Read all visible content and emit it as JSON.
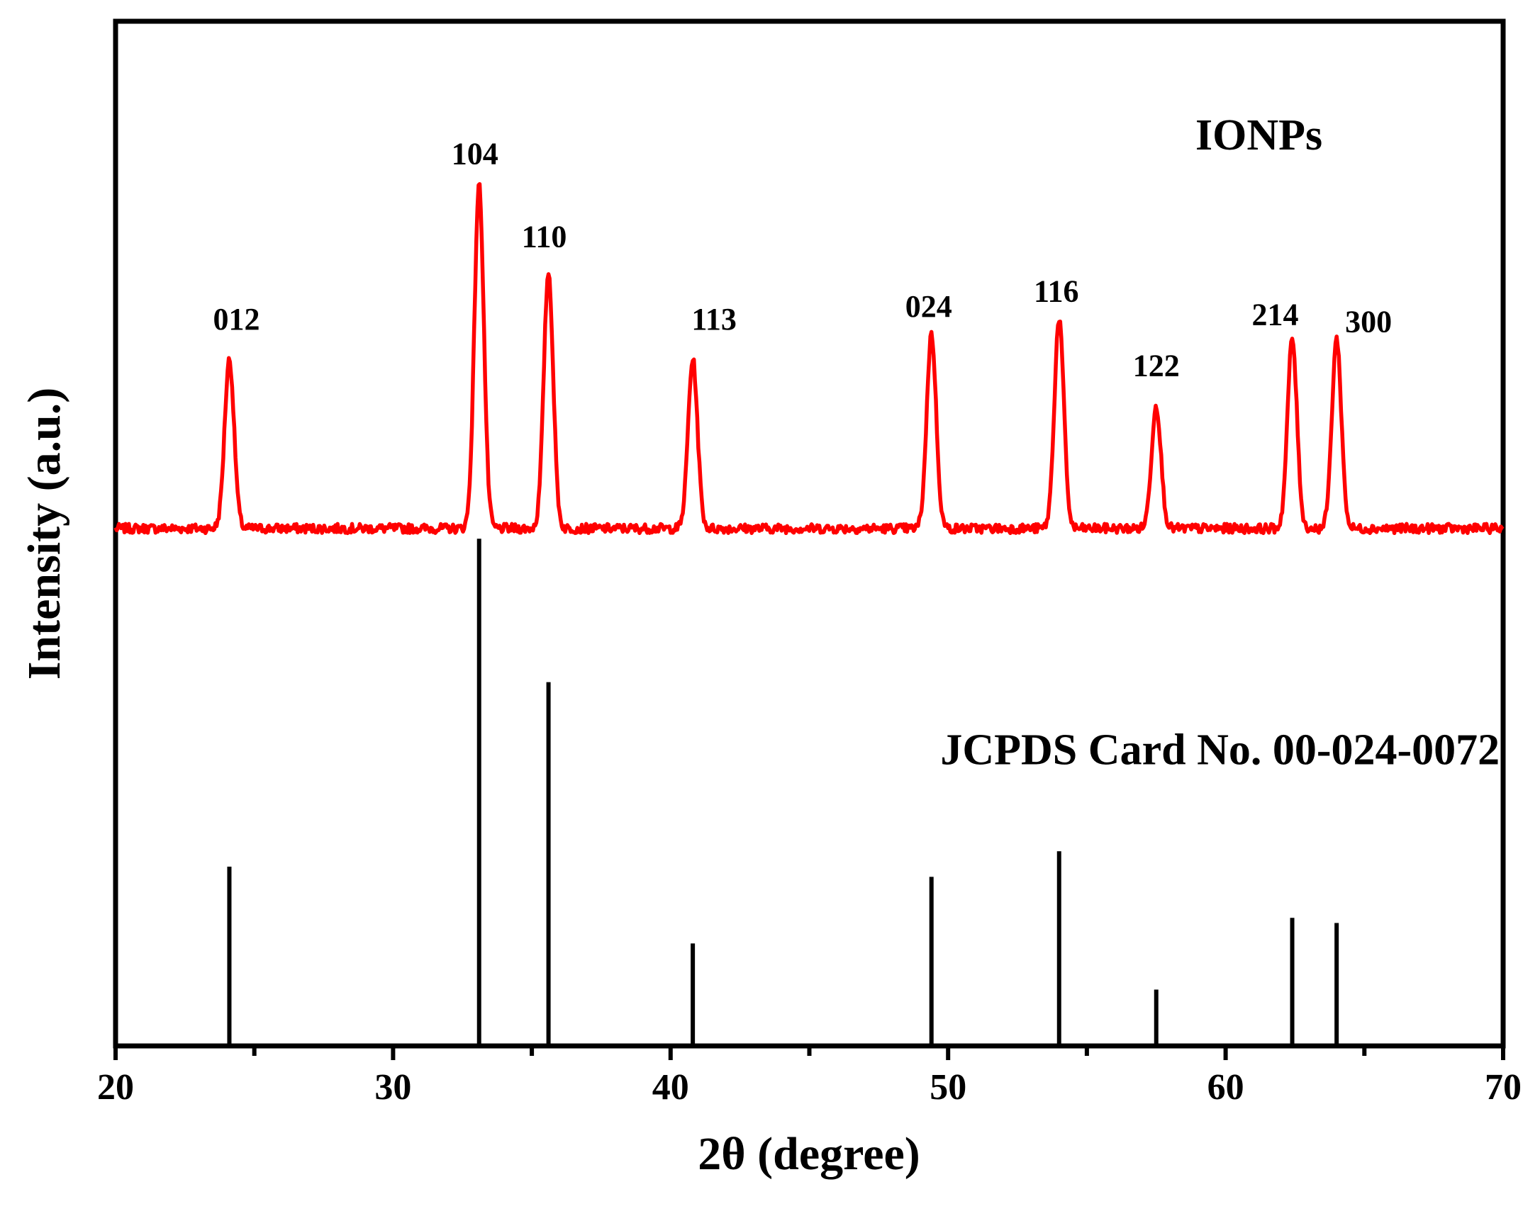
{
  "chart_data": {
    "type": "line",
    "title": "",
    "xlabel": "2θ (degree)",
    "ylabel": "Intensity (a.u.)",
    "xlim": [
      20,
      70
    ],
    "ylim": [
      0,
      100
    ],
    "x_ticks": [
      20,
      30,
      40,
      50,
      60,
      70
    ],
    "x_tick_labels": [
      "20",
      "30",
      "40",
      "50",
      "60",
      "70"
    ],
    "y_ticks_shown": false,
    "grid": false,
    "series": [
      {
        "name": "IONPs",
        "color": "#ff0000",
        "kind": "line",
        "baseline": 50.5,
        "peaks": [
          {
            "x": 24.1,
            "y": 67.0,
            "label": "012"
          },
          {
            "x": 33.1,
            "y": 84.0,
            "label": "104"
          },
          {
            "x": 35.6,
            "y": 75.5,
            "label": "110"
          },
          {
            "x": 40.8,
            "y": 67.0,
            "label": "113"
          },
          {
            "x": 49.4,
            "y": 69.5,
            "label": "024"
          },
          {
            "x": 54.0,
            "y": 71.0,
            "label": "116"
          },
          {
            "x": 57.5,
            "y": 62.5,
            "label": "122"
          },
          {
            "x": 62.4,
            "y": 69.0,
            "label": "214"
          },
          {
            "x": 64.0,
            "y": 69.0,
            "label": "300"
          }
        ]
      },
      {
        "name": "JCPDS Card No. 00-024-0072",
        "color": "#000000",
        "kind": "stick",
        "sticks": [
          {
            "x": 24.1,
            "y": 17.5
          },
          {
            "x": 33.1,
            "y": 49.5
          },
          {
            "x": 35.6,
            "y": 35.5
          },
          {
            "x": 40.8,
            "y": 10.0
          },
          {
            "x": 49.4,
            "y": 16.5
          },
          {
            "x": 54.0,
            "y": 19.0
          },
          {
            "x": 57.5,
            "y": 5.5
          },
          {
            "x": 62.4,
            "y": 12.5
          },
          {
            "x": 64.0,
            "y": 12.0
          }
        ]
      }
    ],
    "annotations": [
      {
        "text": "IONPs",
        "x": 61.2,
        "y": 87.5
      },
      {
        "text": "JCPDS Card No. 00-024-0072",
        "x": 59.8,
        "y": 27.5
      }
    ]
  }
}
